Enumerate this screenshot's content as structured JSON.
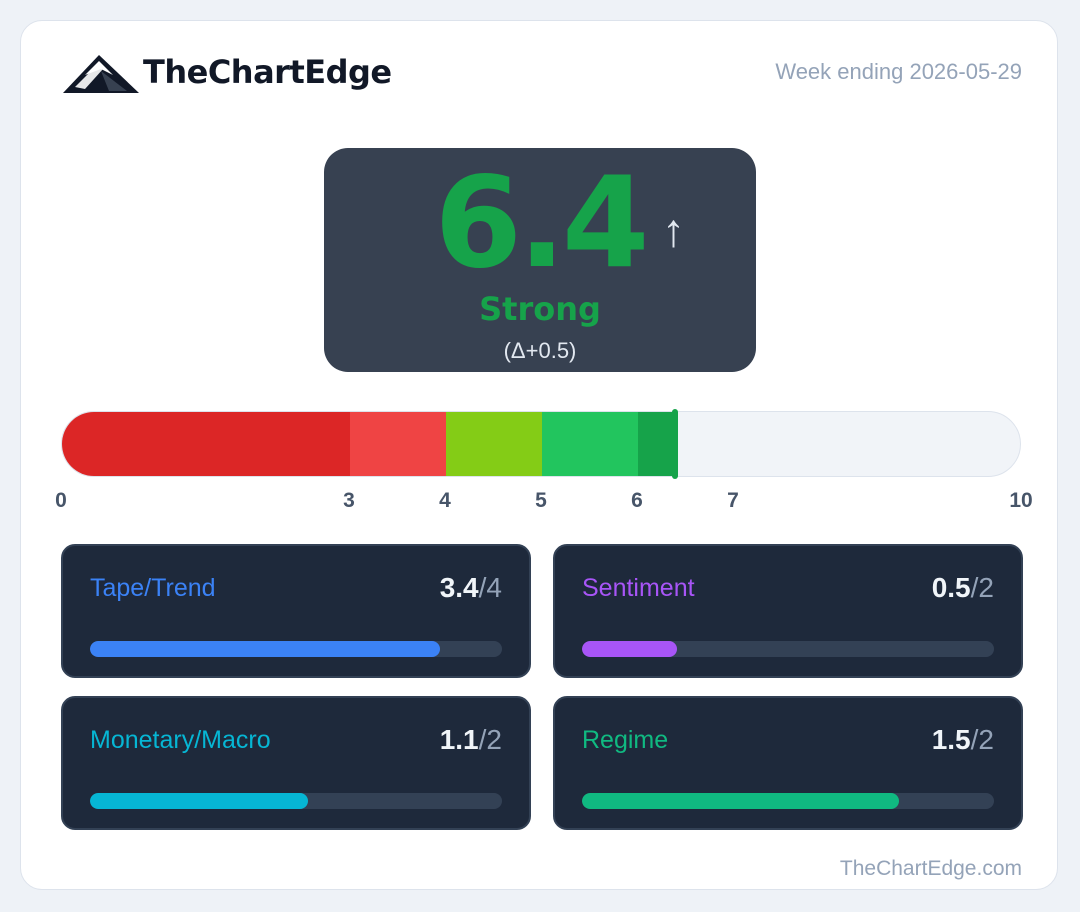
{
  "brand": {
    "name": "TheChartEdge",
    "logo_icon": "mountain-logo-icon"
  },
  "week_label": "Week ending 2026-05-29",
  "score": {
    "value": "6.4",
    "numeric": 6.4,
    "trend_icon": "arrow-up-icon",
    "trend_glyph": "↑",
    "status": "Strong",
    "delta": "(Δ+0.5)",
    "color": "#16a34a"
  },
  "gauge": {
    "min": 0,
    "max": 10,
    "ticks": [
      "0",
      "3",
      "4",
      "5",
      "6",
      "7",
      "10"
    ],
    "segments": [
      {
        "from": 0,
        "to": 3,
        "color": "#dc2626"
      },
      {
        "from": 3,
        "to": 4,
        "color": "#ef4444"
      },
      {
        "from": 4,
        "to": 5,
        "color": "#84cc16"
      },
      {
        "from": 5,
        "to": 6,
        "color": "#22c55e"
      },
      {
        "from": 6,
        "to": 6.4,
        "color": "#16a34a"
      }
    ]
  },
  "metrics": [
    {
      "label": "Tape/Trend",
      "score": "3.4",
      "max": "/4",
      "fraction": 0.85,
      "color": "#3b82f6"
    },
    {
      "label": "Sentiment",
      "score": "0.5",
      "max": "/2",
      "fraction": 0.23,
      "color": "#a855f7"
    },
    {
      "label": "Monetary/Macro",
      "score": "1.1",
      "max": "/2",
      "fraction": 0.53,
      "color": "#06b6d4"
    },
    {
      "label": "Regime",
      "score": "1.5",
      "max": "/2",
      "fraction": 0.77,
      "color": "#10b981"
    }
  ],
  "footer": "TheChartEdge.com"
}
